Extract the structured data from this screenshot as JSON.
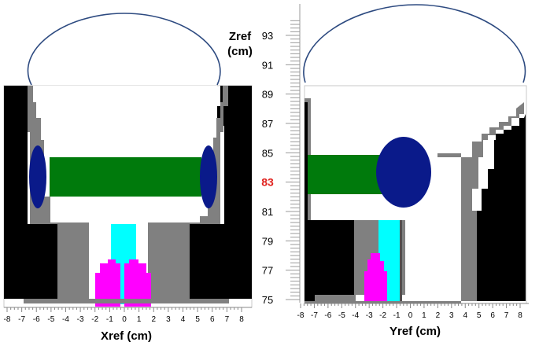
{
  "left_panel": {
    "axis_label": "Xref (cm)",
    "ticks": [
      "-8",
      "-7",
      "-6",
      "-5",
      "-4",
      "-3",
      "-2",
      "-1",
      "0",
      "1",
      "2",
      "3",
      "4",
      "5",
      "6",
      "7",
      "8"
    ]
  },
  "right_panel": {
    "axis_label": "Yref (cm)",
    "ticks": [
      "-8",
      "-7",
      "-6",
      "-5",
      "-4",
      "-3",
      "-2",
      "-1",
      "0",
      "1",
      "2",
      "3",
      "4",
      "5",
      "6",
      "7",
      "8"
    ]
  },
  "z_axis": {
    "label_line1": "Zref",
    "label_line2": "(cm)",
    "ticks": [
      "93",
      "91",
      "89",
      "87",
      "85",
      "83",
      "81",
      "79",
      "77",
      "75"
    ],
    "highlight_tick": "83",
    "highlight_color": "#e0201c"
  },
  "colors": {
    "black": "#000000",
    "gray": "#808080",
    "white": "#ffffff",
    "green": "#007a0c",
    "navy": "#0a1a8a",
    "cyan": "#00ffff",
    "magenta": "#ff00ff",
    "outline": "#2d4a80"
  }
}
